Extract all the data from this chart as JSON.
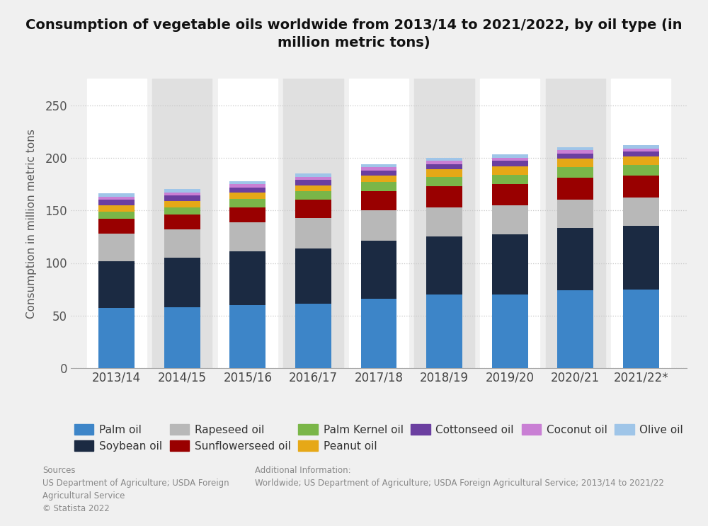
{
  "years": [
    "2013/14",
    "2014/15",
    "2015/16",
    "2016/17",
    "2017/18",
    "2018/19",
    "2019/20",
    "2020/21",
    "2021/22*"
  ],
  "title": "Consumption of vegetable oils worldwide from 2013/14 to 2021/2022, by oil type (in\nmillion metric tons)",
  "ylabel": "Consumption in million metric tons",
  "ylim": [
    0,
    275
  ],
  "yticks": [
    0,
    50,
    100,
    150,
    200,
    250
  ],
  "series": {
    "Palm oil": {
      "values": [
        57,
        58,
        60,
        61,
        66,
        70,
        70,
        74,
        75
      ],
      "color": "#3d85c8"
    },
    "Soybean oil": {
      "values": [
        45,
        47,
        51,
        53,
        55,
        55,
        57,
        59,
        60
      ],
      "color": "#1b2a42"
    },
    "Rapeseed oil": {
      "values": [
        26,
        27,
        28,
        29,
        29,
        28,
        28,
        27,
        27
      ],
      "color": "#b8b8b8"
    },
    "Sunflowerseed oil": {
      "values": [
        14,
        14,
        14,
        17,
        18,
        20,
        20,
        21,
        21
      ],
      "color": "#990000"
    },
    "Palm Kernel oil": {
      "values": [
        7,
        7,
        8,
        8,
        9,
        9,
        9,
        10,
        10
      ],
      "color": "#7ab648"
    },
    "Peanut oil": {
      "values": [
        6,
        6,
        6,
        6,
        6,
        7,
        8,
        8,
        8
      ],
      "color": "#e6a817"
    },
    "Cottonseed oil": {
      "values": [
        5,
        5,
        5,
        5,
        5,
        5,
        5,
        5,
        5
      ],
      "color": "#6b3fa0"
    },
    "Coconut oil": {
      "values": [
        3,
        3,
        3,
        3,
        3,
        3,
        3,
        3,
        3
      ],
      "color": "#c97fd4"
    },
    "Olive oil": {
      "values": [
        3,
        3,
        3,
        3,
        3,
        3,
        3,
        3,
        3
      ],
      "color": "#9fc5e8"
    }
  },
  "background_color": "#f0f0f0",
  "col_bg_white": "#ffffff",
  "col_bg_gray": "#e0e0e0",
  "grid_color": "#c8c8c8",
  "sources_text": "Sources\nUS Department of Agriculture; USDA Foreign\nAgricultural Service\n© Statista 2022",
  "additional_text": "Additional Information:\nWorldwide; US Department of Agriculture; USDA Foreign Agricultural Service; 2013/14 to 2021/22"
}
